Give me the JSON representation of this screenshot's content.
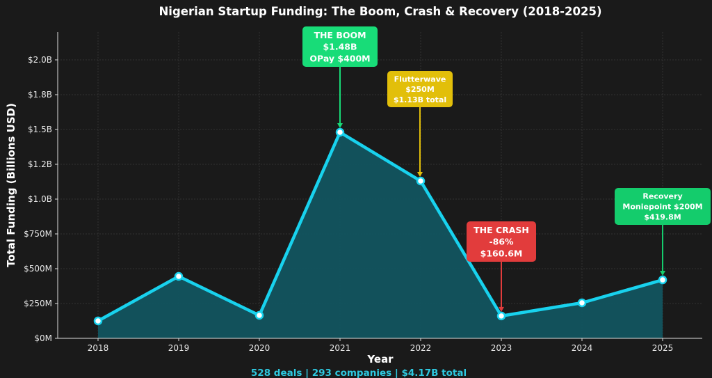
{
  "chart_data": {
    "type": "area",
    "title": "Nigerian Startup Funding: The Boom, Crash & Recovery (2018-2025)",
    "xlabel": "Year",
    "ylabel": "Total Funding (Billions USD)",
    "categories": [
      "2018",
      "2019",
      "2020",
      "2021",
      "2022",
      "2023",
      "2024",
      "2025"
    ],
    "values_musd": [
      125,
      445,
      165,
      1480,
      1130,
      160.6,
      255,
      419.8
    ],
    "ylim_musd": [
      0,
      2200
    ],
    "y_ticks": [
      {
        "value": 0,
        "label": "$0M"
      },
      {
        "value": 250,
        "label": "$250M"
      },
      {
        "value": 500,
        "label": "$500M"
      },
      {
        "value": 750,
        "label": "$750M"
      },
      {
        "value": 1000,
        "label": "$1.0B"
      },
      {
        "value": 1250,
        "label": "$1.2B"
      },
      {
        "value": 1500,
        "label": "$1.5B"
      },
      {
        "value": 1750,
        "label": "$1.8B"
      },
      {
        "value": 2000,
        "label": "$2.0B"
      }
    ],
    "grid": true,
    "line_color": "#18d2ee",
    "fill_color": "#12545f",
    "annotations": [
      {
        "year": "2021",
        "lines": [
          "THE BOOM",
          "$1.48B",
          "OPay $400M"
        ],
        "color": "#18dc78"
      },
      {
        "year": "2022",
        "lines": [
          "Flutterwave",
          "$250M",
          "$1.13B total"
        ],
        "color": "#e2bf0a"
      },
      {
        "year": "2023",
        "lines": [
          "THE CRASH",
          "-86%",
          "$160.6M"
        ],
        "color": "#e23c3c"
      },
      {
        "year": "2025",
        "lines": [
          "Recovery",
          "Moniepoint $200M",
          "$419.8M"
        ],
        "color": "#14cc6c"
      }
    ],
    "footer": "528 deals | 293 companies | $4.17B total",
    "footer_color": "#2ec9e0"
  }
}
